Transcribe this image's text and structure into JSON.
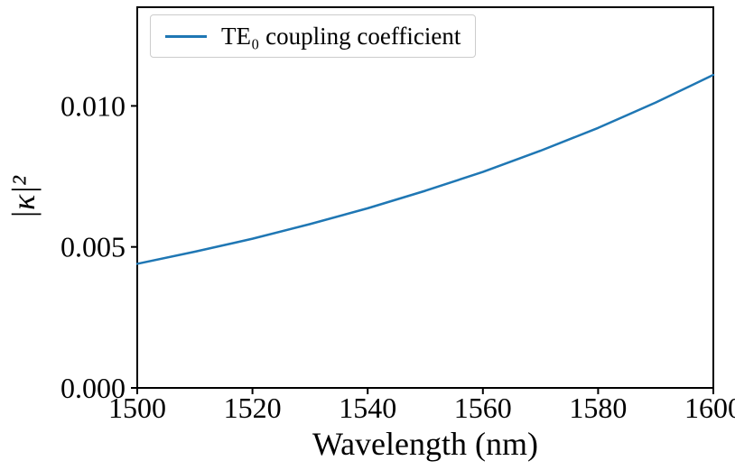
{
  "figure": {
    "background": "#ffffff",
    "line_color": "#1f77b4",
    "legend_border_color": "#cccccc",
    "axis_color": "#000000"
  },
  "chart_data": {
    "type": "line",
    "title": "",
    "xlabel": "Wavelength (nm)",
    "ylabel": "|κ|²",
    "xlim": [
      1500,
      1600
    ],
    "ylim": [
      0,
      0.0135
    ],
    "x_ticks": [
      1500,
      1520,
      1540,
      1560,
      1580,
      1600
    ],
    "x_tick_labels": [
      "1500",
      "1520",
      "1540",
      "1560",
      "1580",
      "1600"
    ],
    "y_ticks": [
      0,
      0.005,
      0.01
    ],
    "y_tick_labels": [
      "0.000",
      "0.005",
      "0.010"
    ],
    "grid": false,
    "legend": {
      "position": "upper-left",
      "entries": [
        {
          "label": "TE₀ coupling coefficient",
          "color": "#1f77b4"
        }
      ]
    },
    "series": [
      {
        "name": "TE₀ coupling coefficient",
        "x": [
          1500,
          1510,
          1520,
          1530,
          1540,
          1550,
          1560,
          1570,
          1580,
          1590,
          1600
        ],
        "y": [
          0.0044,
          0.00483,
          0.00529,
          0.00581,
          0.00637,
          0.00699,
          0.00766,
          0.00841,
          0.00922,
          0.01012,
          0.0111
        ]
      }
    ]
  }
}
